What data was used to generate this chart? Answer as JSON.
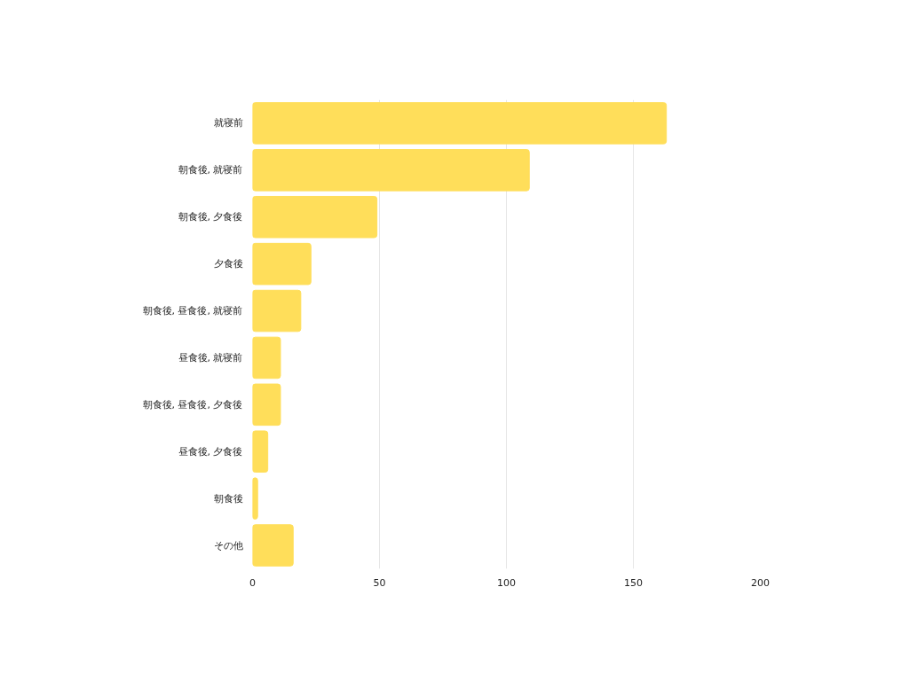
{
  "chart_data": {
    "type": "bar",
    "orientation": "horizontal",
    "categories": [
      "就寝前",
      "朝食後, 就寝前",
      "朝食後, 夕食後",
      "夕食後",
      "朝食後, 昼食後, 就寝前",
      "昼食後, 就寝前",
      "朝食後, 昼食後, 夕食後",
      "昼食後, 夕食後",
      "朝食後",
      "その他"
    ],
    "values": [
      163,
      109,
      49,
      23,
      19,
      11,
      11,
      6,
      2,
      16
    ],
    "color": "#ffde5a",
    "xlim": [
      0,
      200
    ],
    "xticks": [
      0,
      50,
      100,
      150,
      200
    ],
    "grid": "x"
  }
}
